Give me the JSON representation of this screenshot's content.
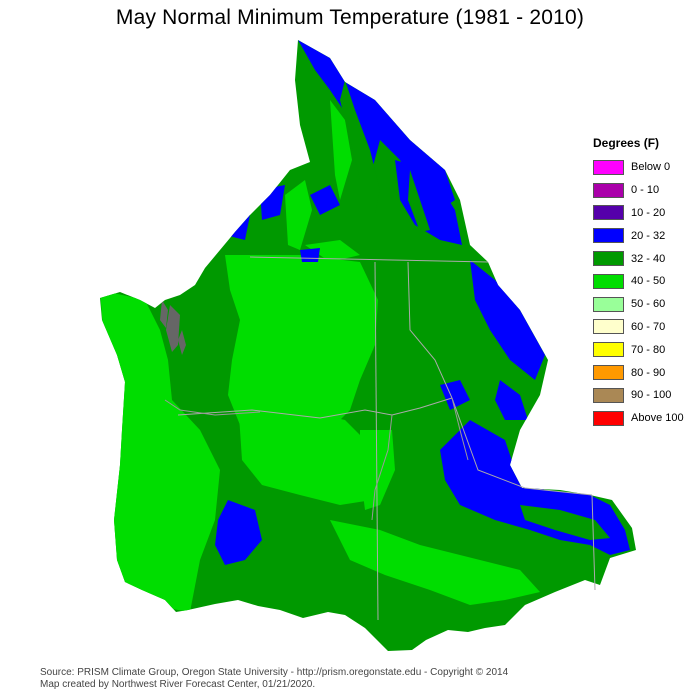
{
  "title": "May Normal Minimum Temperature (1981 - 2010)",
  "legend": {
    "title": "Degrees (F)",
    "items": [
      {
        "label": "Below 0",
        "color": "#ff00ff"
      },
      {
        "label": "0 - 10",
        "color": "#aa00aa"
      },
      {
        "label": "10 - 20",
        "color": "#5500aa"
      },
      {
        "label": "20 - 32",
        "color": "#0000ff"
      },
      {
        "label": "32 - 40",
        "color": "#009900"
      },
      {
        "label": "40 - 50",
        "color": "#00dd00"
      },
      {
        "label": "50 - 60",
        "color": "#99ff99"
      },
      {
        "label": "60 - 70",
        "color": "#ffffcc"
      },
      {
        "label": "70 - 80",
        "color": "#ffff00"
      },
      {
        "label": "80 - 90",
        "color": "#ff9900"
      },
      {
        "label": "90 - 100",
        "color": "#aa8855"
      },
      {
        "label": "Above 100",
        "color": "#ff0000"
      }
    ]
  },
  "credits": {
    "line1": "Source: PRISM Climate Group, Oregon State University - http://prism.oregonstate.edu - Copyright © 2014",
    "line2": "Map created by Northwest River Forecast Center, 01/21/2020."
  },
  "map_colors": {
    "ocean_background": "#ffffff",
    "border": "#aaaaaa",
    "rivers": "#999999",
    "water_bodies": "#666666"
  }
}
